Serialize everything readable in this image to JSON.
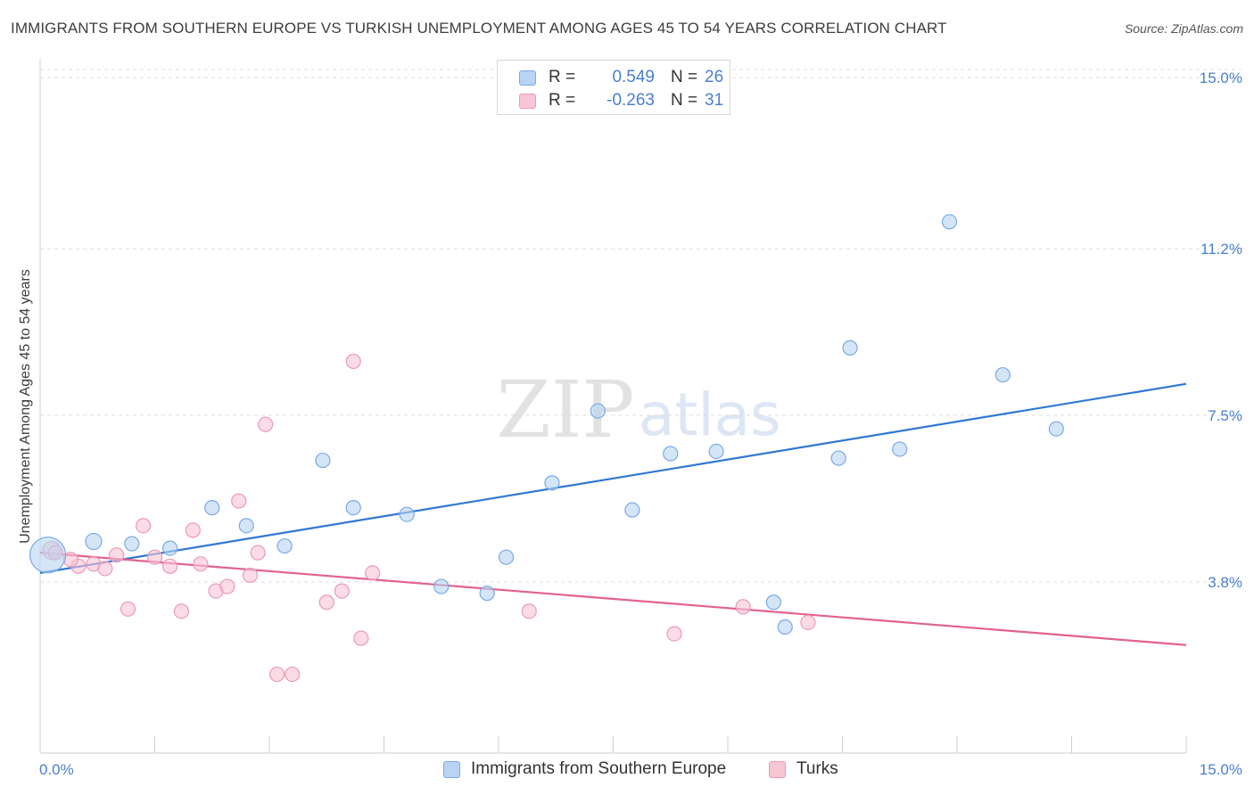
{
  "title": "IMMIGRANTS FROM SOUTHERN EUROPE VS TURKISH UNEMPLOYMENT AMONG AGES 45 TO 54 YEARS CORRELATION CHART",
  "source": "Source: ZipAtlas.com",
  "watermark": {
    "zip": "ZIP",
    "atlas": "atlas"
  },
  "legend": {
    "series1": {
      "r_label": "R =",
      "r_value": "0.549",
      "n_label": "N =",
      "n_value": "26"
    },
    "series2": {
      "r_label": "R =",
      "r_value": "-0.263",
      "n_label": "N =",
      "n_value": "31"
    }
  },
  "bottom_legend": {
    "series1": "Immigrants from Southern Europe",
    "series2": "Turks"
  },
  "chart_data": {
    "type": "scatter",
    "title": "IMMIGRANTS FROM SOUTHERN EUROPE VS TURKISH UNEMPLOYMENT AMONG AGES 45 TO 54 YEARS CORRELATION CHART",
    "xlabel": "",
    "ylabel": "Unemployment Among Ages 45 to 54 years",
    "xlim": [
      0,
      15
    ],
    "ylim": [
      0,
      15.5
    ],
    "x_tick_labels": [
      "0.0%",
      "15.0%"
    ],
    "y_ticks": [
      3.8,
      7.5,
      11.2,
      15.0
    ],
    "y_tick_labels": [
      "3.8%",
      "7.5%",
      "11.2%",
      "15.0%"
    ],
    "grid": true,
    "colors": {
      "series1_fill": "#b8d3f3",
      "series1_stroke": "#7aaae6",
      "series1_line": "#2f78d4",
      "series2_fill": "#f8c5d4",
      "series2_stroke": "#eb9ab3",
      "series2_line": "#e2628e",
      "tick_text": "#4a7fd0"
    },
    "series": [
      {
        "name": "Immigrants from Southern Europe",
        "r": 0.549,
        "n": 26,
        "trend": [
          [
            0,
            4.0
          ],
          [
            15,
            8.2
          ]
        ],
        "points": [
          [
            0.1,
            4.4,
            20
          ],
          [
            0.7,
            4.7,
            9
          ],
          [
            1.2,
            4.65,
            8
          ],
          [
            1.7,
            4.55,
            8
          ],
          [
            2.25,
            5.45,
            8
          ],
          [
            2.7,
            5.05,
            8
          ],
          [
            3.2,
            4.6,
            8
          ],
          [
            3.7,
            6.5,
            8
          ],
          [
            4.1,
            5.45,
            8
          ],
          [
            4.8,
            5.3,
            8
          ],
          [
            5.25,
            3.7,
            8
          ],
          [
            5.85,
            3.55,
            8
          ],
          [
            6.1,
            4.35,
            8
          ],
          [
            6.7,
            6.0,
            8
          ],
          [
            7.3,
            7.6,
            8
          ],
          [
            7.75,
            5.4,
            8
          ],
          [
            8.25,
            6.65,
            8
          ],
          [
            8.85,
            6.7,
            8
          ],
          [
            9.6,
            3.35,
            8
          ],
          [
            9.75,
            2.8,
            8
          ],
          [
            10.45,
            6.55,
            8
          ],
          [
            10.6,
            9.0,
            8
          ],
          [
            11.25,
            6.75,
            8
          ],
          [
            11.9,
            11.8,
            8
          ],
          [
            12.6,
            8.4,
            8
          ],
          [
            13.3,
            7.2,
            8
          ]
        ]
      },
      {
        "name": "Turks",
        "r": -0.263,
        "n": 31,
        "trend": [
          [
            0,
            4.45
          ],
          [
            15,
            2.4
          ]
        ],
        "points": [
          [
            0.15,
            4.5,
            10
          ],
          [
            0.2,
            4.45,
            8
          ],
          [
            0.5,
            4.15,
            8
          ],
          [
            0.7,
            4.2,
            8
          ],
          [
            0.85,
            4.1,
            8
          ],
          [
            1.0,
            4.4,
            8
          ],
          [
            1.15,
            3.2,
            8
          ],
          [
            1.35,
            5.05,
            8
          ],
          [
            1.5,
            4.35,
            8
          ],
          [
            1.7,
            4.15,
            8
          ],
          [
            1.85,
            3.15,
            8
          ],
          [
            2.0,
            4.95,
            8
          ],
          [
            2.1,
            4.2,
            8
          ],
          [
            2.3,
            3.6,
            8
          ],
          [
            2.45,
            3.7,
            8
          ],
          [
            2.6,
            5.6,
            8
          ],
          [
            2.75,
            3.95,
            8
          ],
          [
            2.85,
            4.45,
            8
          ],
          [
            2.95,
            7.3,
            8
          ],
          [
            3.1,
            1.75,
            8
          ],
          [
            3.3,
            1.75,
            8
          ],
          [
            3.75,
            3.35,
            8
          ],
          [
            3.95,
            3.6,
            8
          ],
          [
            4.1,
            8.7,
            8
          ],
          [
            4.2,
            2.55,
            8
          ],
          [
            4.35,
            4.0,
            8
          ],
          [
            6.4,
            3.15,
            8
          ],
          [
            8.3,
            2.65,
            8
          ],
          [
            9.2,
            3.25,
            8
          ],
          [
            10.05,
            2.9,
            8
          ],
          [
            0.4,
            4.3,
            8
          ]
        ]
      }
    ]
  }
}
